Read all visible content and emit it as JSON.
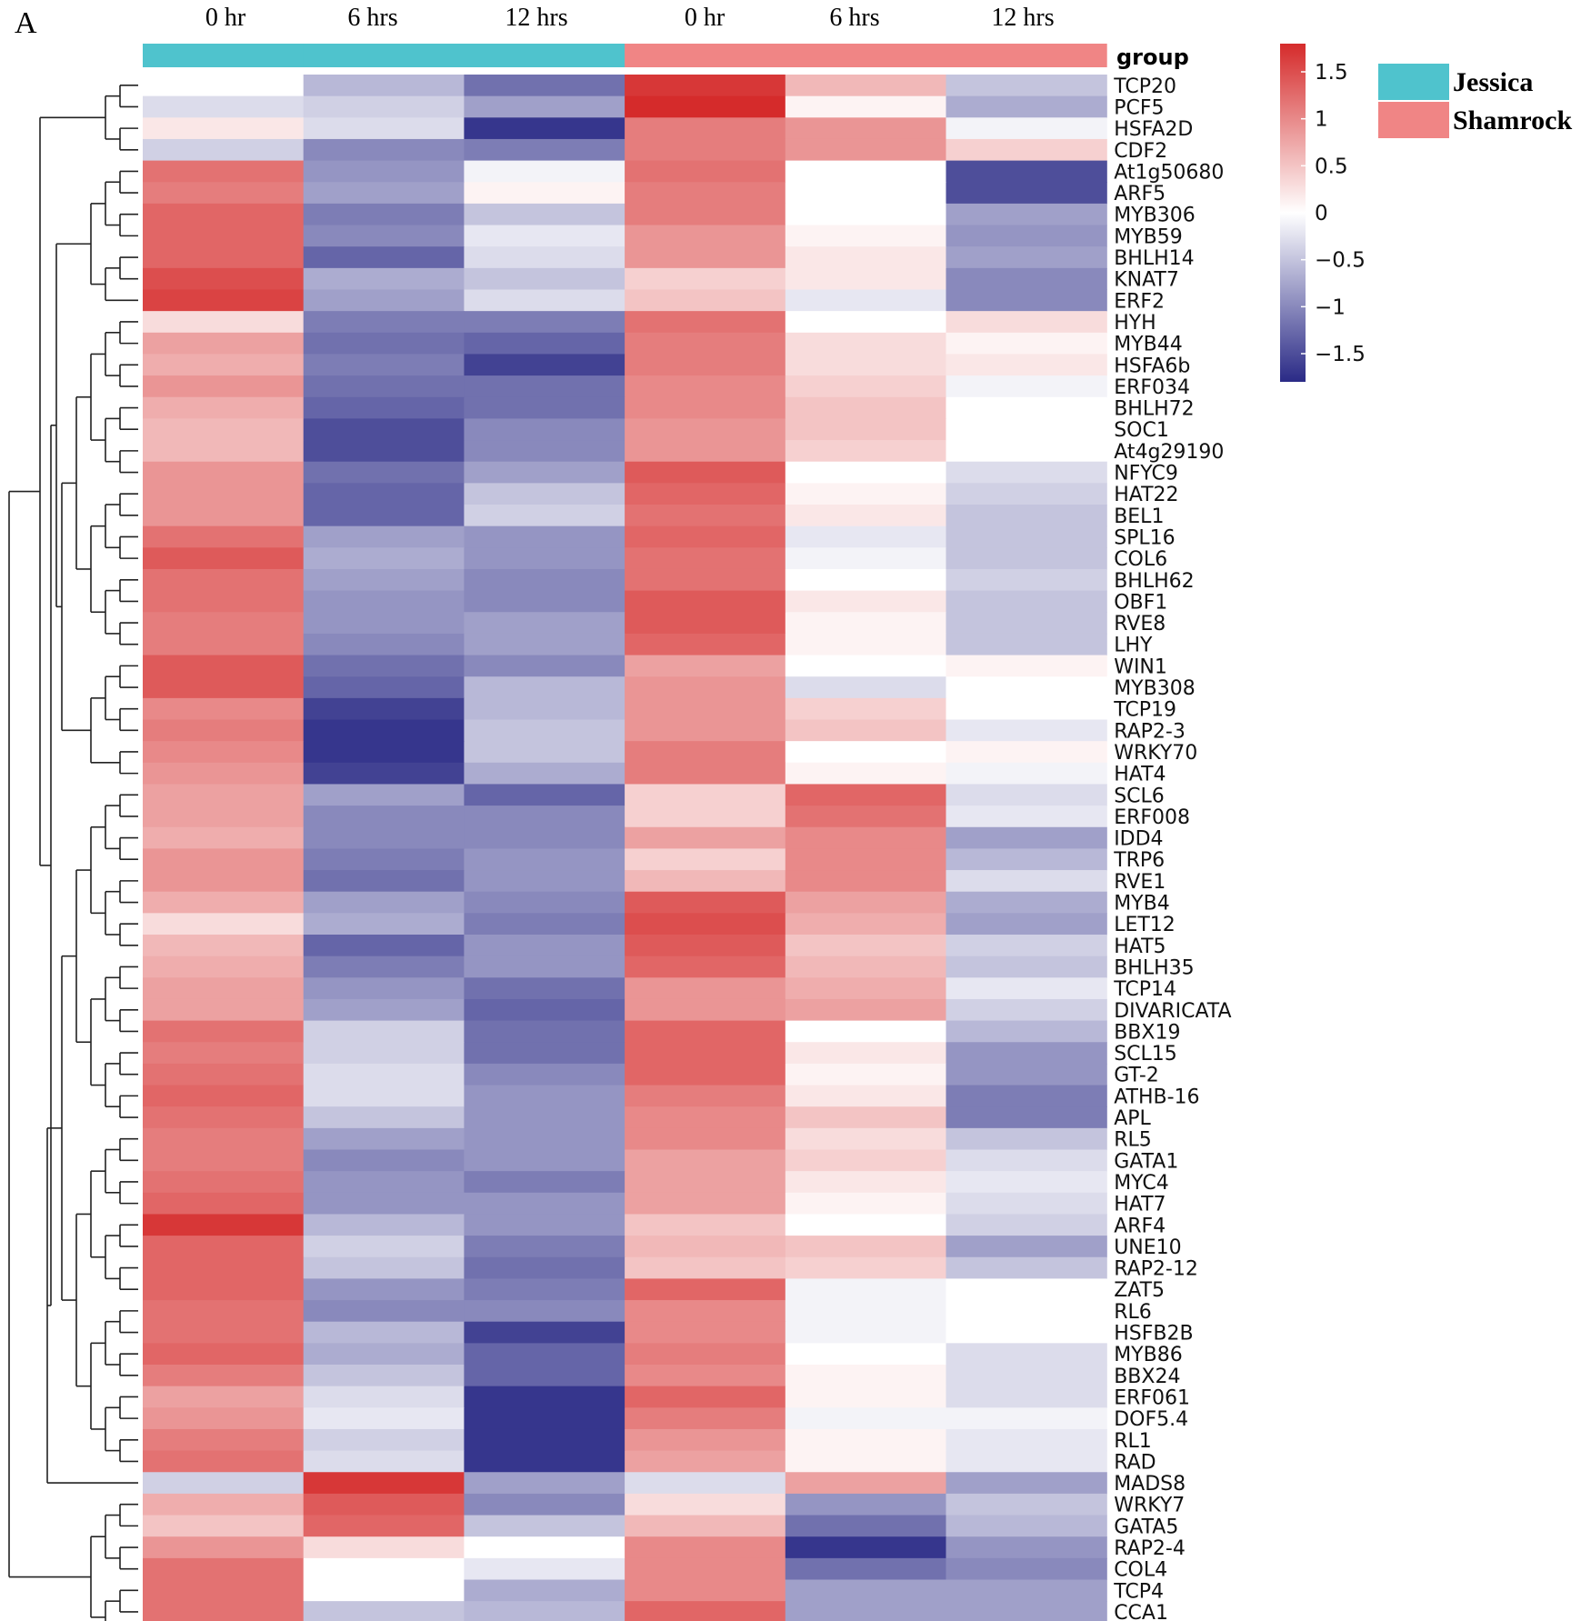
{
  "panel_letter": "A",
  "chart_data": {
    "type": "heatmap",
    "title": "",
    "columns": [
      "0 hr",
      "6 hrs",
      "12 hrs",
      "0 hr",
      "6 hrs",
      "12 hrs"
    ],
    "column_groups": [
      "Jessica",
      "Jessica",
      "Jessica",
      "Shamrock",
      "Shamrock",
      "Shamrock"
    ],
    "group_annotation_label": "group",
    "groups": [
      {
        "name": "Jessica",
        "color": "#4fc3cd"
      },
      {
        "name": "Shamrock",
        "color": "#f08585"
      }
    ],
    "color_scale": {
      "low": "#2a2a86",
      "mid": "#ffffff",
      "high": "#d52b2b",
      "min": -1.8,
      "max": 1.8,
      "ticks": [
        "1.5",
        "1",
        "0.5",
        "0",
        "−0.5",
        "−1",
        "−1.5"
      ],
      "tick_values": [
        1.5,
        1,
        0.5,
        0,
        -0.5,
        -1,
        -1.5
      ]
    },
    "rows": [
      {
        "gene": "TCP20",
        "values": [
          0.0,
          -0.6,
          -1.2,
          1.7,
          0.6,
          -0.5
        ]
      },
      {
        "gene": "PCF5",
        "values": [
          -0.3,
          -0.4,
          -0.8,
          1.8,
          0.1,
          -0.7
        ]
      },
      {
        "gene": "HSFA2D",
        "values": [
          0.2,
          -0.3,
          -1.7,
          1.1,
          0.9,
          -0.1
        ]
      },
      {
        "gene": "CDF2",
        "values": [
          -0.4,
          -1.0,
          -1.1,
          1.1,
          0.9,
          0.4
        ]
      },
      {
        "gene": "At1g50680",
        "values": [
          1.2,
          -0.9,
          -0.1,
          1.2,
          0.0,
          -1.5
        ]
      },
      {
        "gene": "ARF5",
        "values": [
          1.1,
          -0.8,
          0.1,
          1.1,
          0.0,
          -1.5
        ]
      },
      {
        "gene": "MYB306",
        "values": [
          1.3,
          -1.1,
          -0.5,
          1.1,
          0.0,
          -0.8
        ]
      },
      {
        "gene": "MYB59",
        "values": [
          1.3,
          -1.0,
          -0.2,
          0.9,
          0.1,
          -0.9
        ]
      },
      {
        "gene": "BHLH14",
        "values": [
          1.3,
          -1.3,
          -0.3,
          0.9,
          0.2,
          -0.8
        ]
      },
      {
        "gene": "KNAT7",
        "values": [
          1.5,
          -0.7,
          -0.5,
          0.4,
          0.2,
          -1.0
        ]
      },
      {
        "gene": "ERF2",
        "values": [
          1.6,
          -0.8,
          -0.3,
          0.5,
          -0.2,
          -1.0
        ]
      },
      {
        "gene": "HYH",
        "values": [
          0.3,
          -1.1,
          -1.1,
          1.2,
          0.0,
          0.3
        ]
      },
      {
        "gene": "MYB44",
        "values": [
          0.8,
          -1.2,
          -1.3,
          1.1,
          0.3,
          0.1
        ]
      },
      {
        "gene": "HSFA6b",
        "values": [
          0.7,
          -1.1,
          -1.6,
          1.1,
          0.3,
          0.2
        ]
      },
      {
        "gene": "ERF034",
        "values": [
          0.9,
          -1.2,
          -1.2,
          1.0,
          0.4,
          -0.1
        ]
      },
      {
        "gene": "BHLH72",
        "values": [
          0.7,
          -1.3,
          -1.2,
          1.0,
          0.5,
          0.0
        ]
      },
      {
        "gene": "SOC1",
        "values": [
          0.6,
          -1.5,
          -1.0,
          0.9,
          0.5,
          0.0
        ]
      },
      {
        "gene": "At4g29190",
        "values": [
          0.6,
          -1.5,
          -1.0,
          0.9,
          0.4,
          0.0
        ]
      },
      {
        "gene": "NFYC9",
        "values": [
          0.9,
          -1.2,
          -0.8,
          1.4,
          0.0,
          -0.3
        ]
      },
      {
        "gene": "HAT22",
        "values": [
          0.9,
          -1.3,
          -0.5,
          1.3,
          0.1,
          -0.4
        ]
      },
      {
        "gene": "BEL1",
        "values": [
          0.9,
          -1.3,
          -0.4,
          1.2,
          0.2,
          -0.5
        ]
      },
      {
        "gene": "SPL16",
        "values": [
          1.2,
          -0.8,
          -0.9,
          1.3,
          -0.2,
          -0.5
        ]
      },
      {
        "gene": "COL6",
        "values": [
          1.4,
          -0.7,
          -0.9,
          1.2,
          -0.1,
          -0.5
        ]
      },
      {
        "gene": "BHLH62",
        "values": [
          1.2,
          -0.8,
          -1.0,
          1.2,
          0.0,
          -0.4
        ]
      },
      {
        "gene": "OBF1",
        "values": [
          1.2,
          -0.9,
          -1.0,
          1.4,
          0.2,
          -0.5
        ]
      },
      {
        "gene": "RVE8",
        "values": [
          1.1,
          -0.9,
          -0.8,
          1.4,
          0.1,
          -0.5
        ]
      },
      {
        "gene": "LHY",
        "values": [
          1.1,
          -1.0,
          -0.8,
          1.3,
          0.1,
          -0.5
        ]
      },
      {
        "gene": "WIN1",
        "values": [
          1.4,
          -1.2,
          -1.0,
          0.8,
          0.0,
          0.1
        ]
      },
      {
        "gene": "MYB308",
        "values": [
          1.4,
          -1.3,
          -0.6,
          0.9,
          -0.3,
          0.0
        ]
      },
      {
        "gene": "TCP19",
        "values": [
          1.0,
          -1.6,
          -0.6,
          0.9,
          0.4,
          0.0
        ]
      },
      {
        "gene": "RAP2-3",
        "values": [
          1.1,
          -1.7,
          -0.5,
          0.9,
          0.5,
          -0.2
        ]
      },
      {
        "gene": "WRKY70",
        "values": [
          1.0,
          -1.7,
          -0.5,
          1.1,
          0.0,
          0.1
        ]
      },
      {
        "gene": "HAT4",
        "values": [
          0.9,
          -1.6,
          -0.7,
          1.1,
          0.1,
          -0.1
        ]
      },
      {
        "gene": "SCL6",
        "values": [
          0.8,
          -0.8,
          -1.3,
          0.4,
          1.3,
          -0.3
        ]
      },
      {
        "gene": "ERF008",
        "values": [
          0.8,
          -1.0,
          -1.0,
          0.4,
          1.2,
          -0.2
        ]
      },
      {
        "gene": "IDD4",
        "values": [
          0.7,
          -1.0,
          -1.0,
          0.8,
          1.0,
          -0.8
        ]
      },
      {
        "gene": "TRP6",
        "values": [
          0.9,
          -1.1,
          -0.9,
          0.4,
          1.0,
          -0.6
        ]
      },
      {
        "gene": "RVE1",
        "values": [
          0.9,
          -1.2,
          -0.9,
          0.6,
          1.0,
          -0.3
        ]
      },
      {
        "gene": "MYB4",
        "values": [
          0.7,
          -0.8,
          -1.0,
          1.4,
          0.8,
          -0.7
        ]
      },
      {
        "gene": "LET12",
        "values": [
          0.3,
          -0.7,
          -1.1,
          1.5,
          0.7,
          -0.8
        ]
      },
      {
        "gene": "HAT5",
        "values": [
          0.6,
          -1.3,
          -0.9,
          1.4,
          0.5,
          -0.4
        ]
      },
      {
        "gene": "BHLH35",
        "values": [
          0.7,
          -1.1,
          -0.9,
          1.3,
          0.6,
          -0.5
        ]
      },
      {
        "gene": "TCP14",
        "values": [
          0.8,
          -0.9,
          -1.2,
          0.9,
          0.7,
          -0.2
        ]
      },
      {
        "gene": "DIVARICATA",
        "values": [
          0.8,
          -0.8,
          -1.3,
          0.9,
          0.8,
          -0.4
        ]
      },
      {
        "gene": "BBX19",
        "values": [
          1.2,
          -0.4,
          -1.2,
          1.3,
          0.0,
          -0.6
        ]
      },
      {
        "gene": "SCL15",
        "values": [
          1.1,
          -0.4,
          -1.2,
          1.3,
          0.2,
          -0.9
        ]
      },
      {
        "gene": "GT-2",
        "values": [
          1.2,
          -0.3,
          -1.0,
          1.3,
          0.1,
          -0.9
        ]
      },
      {
        "gene": "ATHB-16",
        "values": [
          1.3,
          -0.3,
          -0.9,
          1.1,
          0.2,
          -1.1
        ]
      },
      {
        "gene": "APL",
        "values": [
          1.2,
          -0.5,
          -0.9,
          1.0,
          0.5,
          -1.1
        ]
      },
      {
        "gene": "RL5",
        "values": [
          1.1,
          -0.8,
          -0.9,
          1.0,
          0.3,
          -0.5
        ]
      },
      {
        "gene": "GATA1",
        "values": [
          1.1,
          -1.0,
          -0.9,
          0.8,
          0.4,
          -0.3
        ]
      },
      {
        "gene": "MYC4",
        "values": [
          1.2,
          -0.9,
          -1.1,
          0.8,
          0.2,
          -0.2
        ]
      },
      {
        "gene": "HAT7",
        "values": [
          1.3,
          -0.9,
          -0.9,
          0.8,
          0.1,
          -0.3
        ]
      },
      {
        "gene": "ARF4",
        "values": [
          1.7,
          -0.6,
          -0.9,
          0.5,
          0.0,
          -0.4
        ]
      },
      {
        "gene": "UNE10",
        "values": [
          1.3,
          -0.4,
          -1.1,
          0.6,
          0.5,
          -0.8
        ]
      },
      {
        "gene": "RAP2-12",
        "values": [
          1.3,
          -0.5,
          -1.2,
          0.5,
          0.4,
          -0.5
        ]
      },
      {
        "gene": "ZAT5",
        "values": [
          1.3,
          -0.9,
          -1.1,
          1.3,
          -0.1,
          0.0
        ]
      },
      {
        "gene": "RL6",
        "values": [
          1.2,
          -1.0,
          -1.0,
          1.0,
          -0.1,
          0.0
        ]
      },
      {
        "gene": "HSFB2B",
        "values": [
          1.2,
          -0.6,
          -1.6,
          1.0,
          -0.1,
          0.0
        ]
      },
      {
        "gene": "MYB86",
        "values": [
          1.3,
          -0.7,
          -1.3,
          1.1,
          0.0,
          -0.3
        ]
      },
      {
        "gene": "BBX24",
        "values": [
          1.1,
          -0.5,
          -1.3,
          1.0,
          0.1,
          -0.3
        ]
      },
      {
        "gene": "ERF061",
        "values": [
          0.8,
          -0.3,
          -1.7,
          1.3,
          0.1,
          -0.3
        ]
      },
      {
        "gene": "DOF5.4",
        "values": [
          0.9,
          -0.2,
          -1.7,
          1.1,
          -0.1,
          -0.1
        ]
      },
      {
        "gene": "RL1",
        "values": [
          1.1,
          -0.4,
          -1.7,
          0.9,
          0.1,
          -0.2
        ]
      },
      {
        "gene": "RAD",
        "values": [
          1.2,
          -0.3,
          -1.7,
          0.8,
          0.1,
          -0.2
        ]
      },
      {
        "gene": "MADS8",
        "values": [
          -0.4,
          1.7,
          -0.8,
          -0.3,
          0.8,
          -0.8
        ]
      },
      {
        "gene": "WRKY7",
        "values": [
          0.7,
          1.4,
          -1.0,
          0.3,
          -0.9,
          -0.5
        ]
      },
      {
        "gene": "GATA5",
        "values": [
          0.5,
          1.3,
          -0.5,
          0.6,
          -1.2,
          -0.6
        ]
      },
      {
        "gene": "RAP2-4",
        "values": [
          0.9,
          0.3,
          0.0,
          1.0,
          -1.7,
          -0.9
        ]
      },
      {
        "gene": "COL4",
        "values": [
          1.2,
          0.0,
          -0.2,
          1.0,
          -1.2,
          -1.0
        ]
      },
      {
        "gene": "TCP4",
        "values": [
          1.2,
          0.0,
          -0.7,
          1.0,
          -0.8,
          -0.8
        ]
      },
      {
        "gene": "CCA1",
        "values": [
          1.2,
          -0.5,
          -0.6,
          1.3,
          -0.8,
          -0.8
        ]
      }
    ],
    "row_dendrogram": true
  }
}
